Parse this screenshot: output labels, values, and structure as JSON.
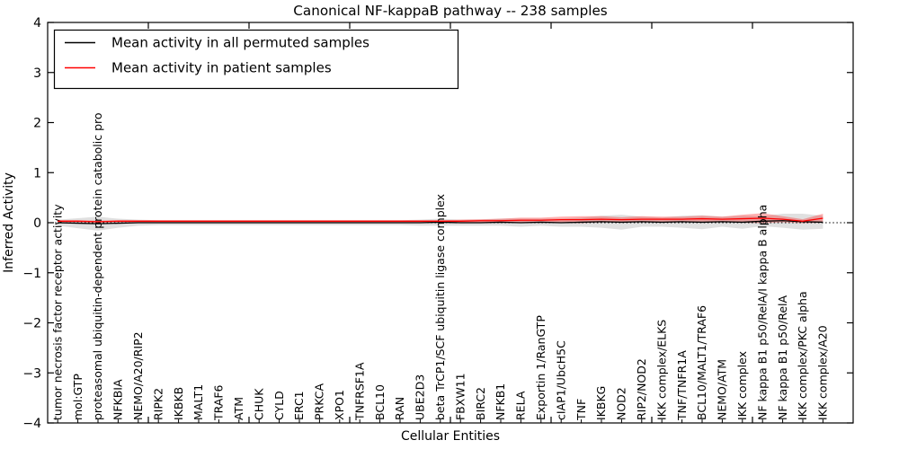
{
  "title": "Canonical NF-kappaB pathway -- 238 samples",
  "legend": {
    "items": [
      {
        "label": "Mean activity in all permuted samples",
        "color": "#000000"
      },
      {
        "label": "Mean activity in patient samples",
        "color": "#ff0000"
      }
    ]
  },
  "chart_data": {
    "type": "line",
    "title": "Canonical NF-kappaB pathway -- 238 samples",
    "xlabel": "Cellular Entities",
    "ylabel": "Inferred Activity",
    "ylim": [
      -4,
      4
    ],
    "yticks": [
      -4,
      -3,
      -2,
      -1,
      0,
      1,
      2,
      3,
      4
    ],
    "grid": false,
    "zero_reference_line": 0,
    "legend_position": "upper left",
    "categories": [
      "tumor necrosis factor receptor activity",
      "mol:GTP",
      "proteasomal ubiquitin-dependent protein catabolic pro",
      "NFKBIA",
      "NEMO/A20/RIP2",
      "RIPK2",
      "IKBKB",
      "MALT1",
      "TRAF6",
      "ATM",
      "CHUK",
      "CYLD",
      "ERC1",
      "PRKCA",
      "XPO1",
      "TNFRSF1A",
      "BCL10",
      "RAN",
      "UBE2D3",
      "beta TrCP1/SCF ubiquitin ligase complex",
      "FBXW11",
      "BIRC2",
      "NFKB1",
      "RELA",
      "Exportin 1/RanGTP",
      "cIAP1/UbcH5C",
      "TNF",
      "IKBKG",
      "NOD2",
      "RIP2/NOD2",
      "IKK complex/ELKS",
      "TNF/TNFR1A",
      "BCL10/MALT1/TRAF6",
      "NEMO/ATM",
      "IKK complex",
      "NF kappa B1 p50/RelA/I kappa B alpha",
      "NF kappa B1 p50/RelA",
      "IKK complex/PKC alpha",
      "IKK complex/A20"
    ],
    "series": [
      {
        "name": "Mean activity in all permuted samples",
        "color": "#000000",
        "band_color": "#999999",
        "band_opacity": 0.3,
        "values": [
          0.0,
          -0.01,
          -0.02,
          -0.01,
          0.0,
          0.0,
          0.0,
          0.0,
          0.0,
          0.0,
          0.0,
          0.0,
          0.0,
          0.0,
          0.0,
          0.0,
          0.0,
          0.0,
          0.0,
          0.01,
          0.0,
          0.0,
          0.01,
          0.0,
          0.01,
          0.0,
          0.01,
          0.02,
          0.01,
          0.02,
          0.01,
          0.02,
          0.01,
          0.02,
          0.01,
          0.03,
          0.04,
          0.02,
          0.01
        ],
        "band_halfwidth": [
          0.06,
          0.1,
          0.14,
          0.09,
          0.06,
          0.05,
          0.05,
          0.05,
          0.05,
          0.05,
          0.05,
          0.05,
          0.05,
          0.05,
          0.05,
          0.05,
          0.05,
          0.05,
          0.06,
          0.07,
          0.06,
          0.06,
          0.07,
          0.08,
          0.07,
          0.08,
          0.09,
          0.12,
          0.15,
          0.1,
          0.09,
          0.12,
          0.14,
          0.1,
          0.13,
          0.1,
          0.14,
          0.16,
          0.13
        ]
      },
      {
        "name": "Mean activity in patient samples",
        "color": "#ff0000",
        "band_color": "#ff0000",
        "band_opacity": 0.3,
        "values": [
          0.03,
          0.03,
          0.02,
          0.03,
          0.03,
          0.03,
          0.03,
          0.03,
          0.03,
          0.03,
          0.03,
          0.03,
          0.03,
          0.03,
          0.03,
          0.03,
          0.03,
          0.03,
          0.03,
          0.03,
          0.03,
          0.04,
          0.04,
          0.05,
          0.05,
          0.06,
          0.06,
          0.07,
          0.06,
          0.07,
          0.07,
          0.07,
          0.08,
          0.07,
          0.08,
          0.09,
          0.07,
          0.03,
          0.09
        ],
        "band_halfwidth": [
          0.02,
          0.02,
          0.02,
          0.02,
          0.02,
          0.02,
          0.02,
          0.02,
          0.02,
          0.02,
          0.02,
          0.02,
          0.02,
          0.02,
          0.02,
          0.02,
          0.02,
          0.02,
          0.02,
          0.02,
          0.03,
          0.03,
          0.04,
          0.05,
          0.05,
          0.06,
          0.07,
          0.06,
          0.05,
          0.06,
          0.05,
          0.05,
          0.06,
          0.05,
          0.08,
          0.1,
          0.06,
          0.04,
          0.09
        ]
      }
    ]
  }
}
